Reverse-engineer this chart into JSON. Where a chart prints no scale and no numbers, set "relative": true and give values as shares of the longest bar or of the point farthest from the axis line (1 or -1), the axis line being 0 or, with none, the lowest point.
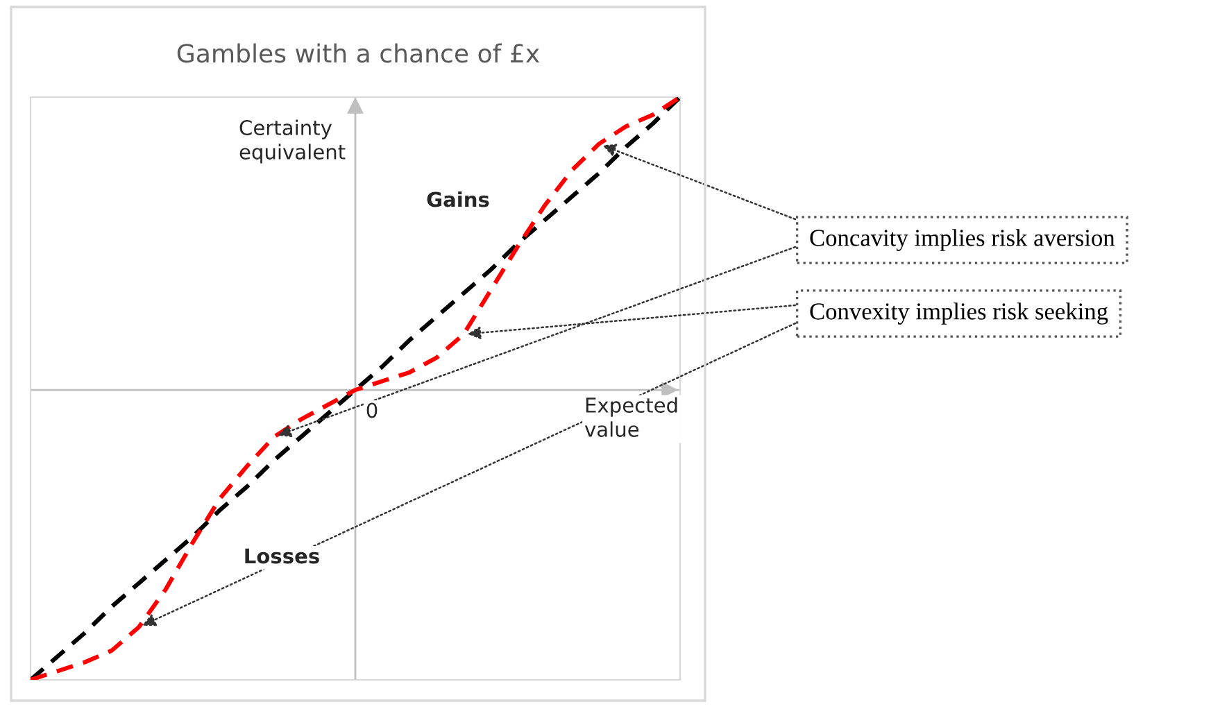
{
  "chart_data": {
    "type": "line",
    "relative": true,
    "title": "Gambles with a chance of £x",
    "xlabel": "Expected value",
    "ylabel": "Certainty equivalent",
    "categories": [
      null,
      null,
      null,
      null,
      null,
      null,
      null,
      null,
      null,
      null,
      null,
      null,
      null,
      null,
      null,
      null,
      null,
      null,
      null,
      null,
      null,
      null,
      null,
      null,
      null
    ],
    "series": [
      {
        "color": "#000000",
        "values": [
          -0.99,
          -0.91,
          -0.83,
          -0.74,
          -0.66,
          -0.58,
          -0.5,
          -0.41,
          -0.33,
          -0.24,
          -0.16,
          -0.08,
          0.0,
          0.08,
          0.17,
          0.25,
          0.33,
          0.41,
          0.5,
          0.58,
          0.66,
          0.74,
          0.83,
          0.91,
          1.0
        ]
      },
      {
        "color": "#ff0000",
        "values": [
          -0.99,
          -0.96,
          -0.93,
          -0.89,
          -0.81,
          -0.68,
          -0.52,
          -0.37,
          -0.26,
          -0.16,
          -0.1,
          -0.05,
          0.0,
          0.03,
          0.06,
          0.11,
          0.19,
          0.34,
          0.49,
          0.63,
          0.75,
          0.84,
          0.9,
          0.94,
          1.0
        ]
      }
    ],
    "line_style": "dashed",
    "marker": "none",
    "annotations": [
      "Gains",
      "Losses",
      "0",
      "Concavity implies risk aversion",
      "Convexity implies risk seeking"
    ]
  }
}
